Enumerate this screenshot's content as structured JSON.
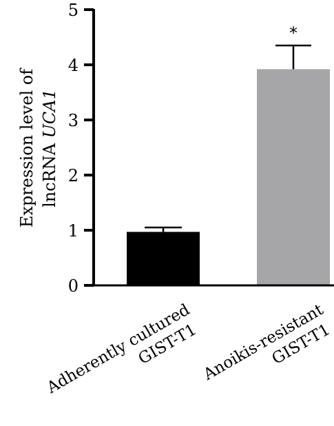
{
  "chart_data": {
    "type": "bar",
    "categories": [
      [
        "Adherently cultured",
        "GIST-T1"
      ],
      [
        "Anoikis-resistant",
        "GIST-T1"
      ]
    ],
    "values": [
      0.97,
      3.92
    ],
    "errors": [
      0.08,
      0.43
    ],
    "significance": [
      "",
      "*"
    ],
    "bar_colors": [
      "#000000",
      "#a6a6a8"
    ],
    "ylabel_line1": "Expression level of",
    "ylabel_line2_prefix": "lncRNA ",
    "ylabel_line2_italic": "UCA1",
    "ylim": [
      0,
      5
    ],
    "yticks": [
      0,
      1,
      2,
      3,
      4,
      5
    ],
    "grid": false
  }
}
